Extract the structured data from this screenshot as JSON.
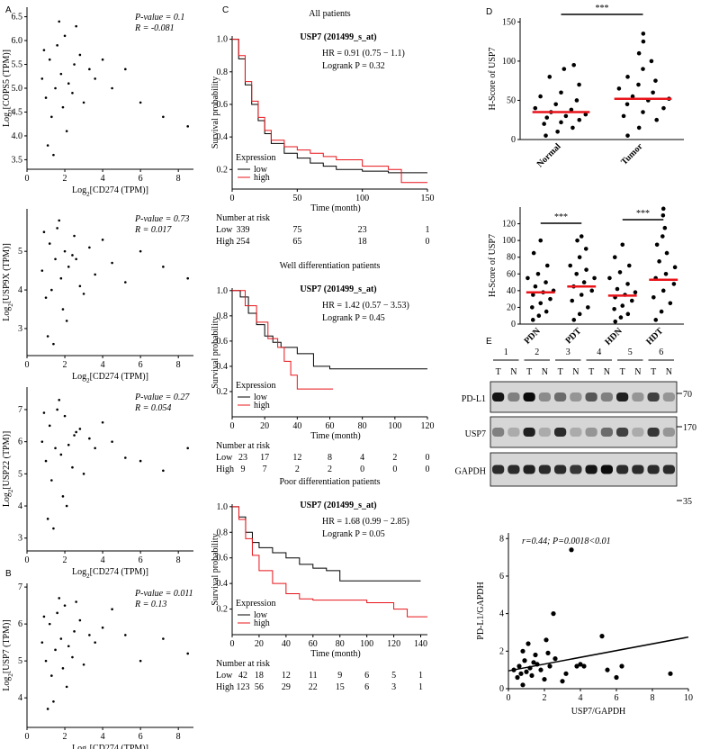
{
  "chart_data": [
    {
      "type": "scatter",
      "panel": "A",
      "xlabel": [
        "Log",
        "2",
        "[CD274 (TPM)]"
      ],
      "ylabel": [
        "Log",
        "2",
        "[COPS5 (TPM)]"
      ],
      "annotations": [
        "P-value = 0.1",
        "R = -0.081"
      ],
      "xlim": [
        0,
        8.8
      ],
      "xticks": [
        0,
        2,
        4,
        6,
        8
      ],
      "ylim": [
        3.3,
        6.7
      ],
      "yticks": [
        3.5,
        {
          "value": 4,
          "label": "4.0"
        },
        4.5,
        {
          "value": 5,
          "label": "5.0"
        },
        5.5,
        {
          "value": 6,
          "label": "6.0"
        },
        6.5
      ],
      "color": "#000000",
      "x": [
        0.8,
        1.0,
        1.2,
        1.3,
        1.5,
        1.6,
        1.8,
        1.9,
        2.0,
        2.2,
        2.4,
        2.5,
        2.8,
        3.0,
        3.3,
        3.6,
        4.0,
        4.5,
        5.2,
        6.0,
        7.2,
        8.5,
        1.1,
        1.7,
        2.1,
        0.9,
        1.4,
        2.6
      ],
      "y": [
        5.2,
        4.8,
        5.6,
        4.4,
        5.0,
        5.9,
        5.3,
        4.6,
        6.1,
        5.1,
        4.9,
        5.5,
        5.7,
        4.7,
        5.4,
        5.2,
        5.6,
        5.0,
        5.4,
        4.7,
        4.4,
        4.2,
        3.8,
        6.4,
        4.1,
        5.8,
        3.6,
        6.3
      ]
    },
    {
      "type": "scatter",
      "xlabel": [
        "Log",
        "2",
        "[CD274 (TPM)]"
      ],
      "ylabel": [
        "Log",
        "2",
        "[USP9X (TPM)]"
      ],
      "annotations": [
        "P-value = 0.73",
        "R = 0.017"
      ],
      "xlim": [
        0,
        8.8
      ],
      "xticks": [
        0,
        2,
        4,
        6,
        8
      ],
      "ylim": [
        2.3,
        6.1
      ],
      "yticks": [
        3,
        4,
        5
      ],
      "color": "#000000",
      "x": [
        0.8,
        1.0,
        1.2,
        1.3,
        1.5,
        1.6,
        1.8,
        1.9,
        2.0,
        2.2,
        2.4,
        2.5,
        2.8,
        3.0,
        3.3,
        3.6,
        4.0,
        4.5,
        5.2,
        6.0,
        7.2,
        8.5,
        1.1,
        1.7,
        2.1,
        0.9,
        1.4,
        2.6
      ],
      "y": [
        4.5,
        3.8,
        5.2,
        4.0,
        4.8,
        5.6,
        4.3,
        3.5,
        5.0,
        4.6,
        4.9,
        5.4,
        4.1,
        3.9,
        5.1,
        4.4,
        5.3,
        4.7,
        4.2,
        5.0,
        4.6,
        4.3,
        2.8,
        5.8,
        3.2,
        5.5,
        2.6,
        4.8
      ]
    },
    {
      "type": "scatter",
      "xlabel": [
        "Log",
        "2",
        "[CD274 (TPM)]"
      ],
      "ylabel": [
        "Log",
        "2",
        "[USP22 (TPM)]"
      ],
      "annotations": [
        "P-value = 0.27",
        "R = 0.054"
      ],
      "xlim": [
        0,
        8.8
      ],
      "xticks": [
        0,
        2,
        4,
        6,
        8
      ],
      "ylim": [
        2.6,
        7.7
      ],
      "yticks": [
        3,
        4,
        5,
        6,
        7
      ],
      "color": "#000000",
      "x": [
        0.8,
        1.0,
        1.2,
        1.3,
        1.5,
        1.6,
        1.8,
        1.9,
        2.0,
        2.2,
        2.4,
        2.5,
        2.8,
        3.0,
        3.3,
        3.6,
        4.0,
        4.5,
        5.2,
        6.0,
        7.2,
        8.5,
        1.1,
        1.7,
        2.1,
        0.9,
        1.4,
        2.6
      ],
      "y": [
        6.0,
        5.4,
        6.5,
        4.8,
        5.8,
        7.0,
        5.6,
        4.3,
        6.8,
        5.9,
        5.2,
        6.2,
        6.4,
        5.0,
        6.1,
        5.8,
        6.6,
        6.0,
        5.5,
        5.4,
        5.1,
        5.8,
        3.6,
        7.3,
        4.0,
        6.9,
        3.3,
        6.3
      ]
    },
    {
      "type": "scatter",
      "panel": "B",
      "xlabel": [
        "Log",
        "2",
        "[CD274 (TPM)]"
      ],
      "ylabel": [
        "Log",
        "2",
        "[USP7 (TPM)]"
      ],
      "annotations": [
        "P-value = 0.011",
        "R = 0.13"
      ],
      "xlim": [
        0,
        8.8
      ],
      "xticks": [
        0,
        2,
        4,
        6,
        8
      ],
      "ylim": [
        3.2,
        7.1
      ],
      "yticks": [
        4,
        5,
        6,
        7
      ],
      "color": "#000000",
      "x": [
        0.8,
        1.0,
        1.2,
        1.3,
        1.5,
        1.6,
        1.8,
        1.9,
        2.0,
        2.2,
        2.4,
        2.5,
        2.8,
        3.0,
        3.3,
        3.6,
        4.0,
        4.5,
        5.2,
        6.0,
        7.2,
        8.5,
        1.1,
        1.7,
        2.1,
        0.9,
        1.4,
        2.6
      ],
      "y": [
        5.5,
        5.0,
        6.0,
        4.6,
        5.3,
        6.3,
        5.6,
        4.8,
        6.5,
        5.4,
        5.1,
        5.8,
        6.1,
        4.9,
        5.7,
        5.5,
        5.9,
        6.4,
        5.7,
        5.0,
        5.6,
        5.2,
        3.7,
        6.7,
        4.3,
        6.2,
        3.9,
        6.6
      ]
    },
    {
      "type": "km",
      "panel": "C",
      "header": "All patients",
      "gene": "USP7 (201499_s_at)",
      "hr": "HR = 0.91 (0.75 − 1.1)",
      "logrank": "Logrank P = 0.32",
      "xlabel": "Time (month)",
      "ylabel": "Survival probability",
      "legend_title": "Expression",
      "xlim": [
        0,
        150
      ],
      "xticks": [
        0,
        50,
        100,
        150
      ],
      "ylim": [
        0.08,
        1.02
      ],
      "yticks": [
        0.2,
        0.4,
        0.6,
        0.8,
        {
          "value": 1,
          "label": "1.0"
        }
      ],
      "series": [
        {
          "name": "low",
          "color": "#000000",
          "x": [
            0,
            5,
            10,
            15,
            20,
            25,
            30,
            40,
            50,
            60,
            70,
            80,
            100,
            120,
            150
          ],
          "values": [
            1,
            0.88,
            0.72,
            0.6,
            0.5,
            0.42,
            0.36,
            0.3,
            0.27,
            0.24,
            0.22,
            0.2,
            0.19,
            0.18,
            0.18
          ]
        },
        {
          "name": "high",
          "color": "#e8141a",
          "x": [
            0,
            5,
            10,
            15,
            20,
            25,
            30,
            40,
            50,
            60,
            70,
            80,
            100,
            120,
            130,
            150
          ],
          "values": [
            1,
            0.9,
            0.74,
            0.62,
            0.52,
            0.44,
            0.38,
            0.34,
            0.32,
            0.3,
            0.28,
            0.26,
            0.22,
            0.2,
            0.12,
            0.12
          ]
        }
      ],
      "risk_title": "Number at risk",
      "risk": [
        {
          "name": "Low",
          "values": [
            339,
            75,
            23,
            1
          ]
        },
        {
          "name": "High",
          "values": [
            254,
            65,
            18,
            0
          ]
        }
      ]
    },
    {
      "type": "km",
      "header": "Well differentiation patients",
      "gene": "USP7 (201499_s_at)",
      "hr": "HR = 1.42 (0.57 − 3.53)",
      "logrank": "Logrank P = 0.45",
      "xlabel": "Time (month)",
      "ylabel": "Survival probability",
      "legend_title": "Expression",
      "xlim": [
        0,
        120
      ],
      "xticks": [
        0,
        20,
        40,
        60,
        80,
        100,
        120
      ],
      "ylim": [
        0,
        1.02
      ],
      "yticks": [
        0.2,
        0.4,
        0.6,
        0.8,
        {
          "value": 1,
          "label": "1.0"
        }
      ],
      "series": [
        {
          "name": "low",
          "color": "#000000",
          "x": [
            0,
            5,
            10,
            15,
            20,
            25,
            30,
            40,
            50,
            60,
            120
          ],
          "values": [
            1,
            0.95,
            0.82,
            0.73,
            0.64,
            0.59,
            0.55,
            0.5,
            0.4,
            0.38,
            0.38
          ]
        },
        {
          "name": "high",
          "color": "#e8141a",
          "x": [
            0,
            8,
            15,
            22,
            28,
            32,
            36,
            40,
            50,
            62
          ],
          "values": [
            1,
            0.88,
            0.75,
            0.62,
            0.55,
            0.44,
            0.33,
            0.22,
            0.22,
            0.22
          ]
        }
      ],
      "risk_title": "Number at risk",
      "risk": [
        {
          "name": "Low",
          "values": [
            23,
            17,
            12,
            8,
            4,
            2,
            0
          ]
        },
        {
          "name": "High",
          "values": [
            9,
            7,
            2,
            2,
            0,
            0,
            0
          ]
        }
      ]
    },
    {
      "type": "km",
      "header": "Poor differentiation patients",
      "gene": "USP7 (201499_s_at)",
      "hr": "HR = 1.68 (0.99 − 2.85)",
      "logrank": "Logrank P = 0.05",
      "xlabel": "Time (month)",
      "ylabel": "Survival probability",
      "legend_title": "Expression",
      "xlim": [
        0,
        145
      ],
      "xticks": [
        0,
        20,
        40,
        60,
        80,
        100,
        120,
        140
      ],
      "ylim": [
        0,
        1.02
      ],
      "yticks": [
        0.2,
        0.4,
        0.6,
        0.8,
        {
          "value": 1,
          "label": "1.0"
        }
      ],
      "series": [
        {
          "name": "low",
          "color": "#000000",
          "x": [
            0,
            5,
            10,
            15,
            20,
            30,
            40,
            50,
            60,
            70,
            80,
            100,
            140
          ],
          "values": [
            1,
            0.92,
            0.8,
            0.72,
            0.68,
            0.64,
            0.6,
            0.55,
            0.52,
            0.5,
            0.42,
            0.42,
            0.42
          ]
        },
        {
          "name": "high",
          "color": "#e8141a",
          "x": [
            0,
            5,
            10,
            15,
            20,
            30,
            40,
            50,
            60,
            80,
            100,
            120,
            130,
            145
          ],
          "values": [
            1,
            0.9,
            0.75,
            0.62,
            0.5,
            0.4,
            0.32,
            0.28,
            0.27,
            0.27,
            0.25,
            0.2,
            0.14,
            0.14
          ]
        }
      ],
      "risk_title": "Number at risk",
      "risk": [
        {
          "name": "Low",
          "values": [
            42,
            18,
            12,
            11,
            9,
            6,
            5,
            1
          ]
        },
        {
          "name": "High",
          "values": [
            123,
            56,
            29,
            22,
            15,
            6,
            3,
            1
          ]
        }
      ]
    },
    {
      "type": "dot",
      "panel": "D",
      "ylabel": "H-Score of USP7",
      "ylim": [
        0,
        155
      ],
      "yticks": [
        0,
        50,
        100,
        150
      ],
      "categories": [
        "Normal",
        "Tumor"
      ],
      "color": "#000000",
      "mean_color": "#e8141a",
      "sig": [
        "***"
      ],
      "groups": [
        [
          5,
          10,
          15,
          20,
          22,
          25,
          28,
          30,
          32,
          35,
          38,
          40,
          45,
          50,
          55,
          60,
          70,
          80,
          90,
          95
        ],
        [
          5,
          15,
          25,
          30,
          35,
          40,
          45,
          50,
          52,
          55,
          60,
          65,
          70,
          75,
          80,
          90,
          100,
          110,
          125,
          135
        ]
      ],
      "means": [
        35,
        52
      ]
    },
    {
      "type": "dot",
      "ylabel": "H-Score of USP7",
      "ylim": [
        0,
        140
      ],
      "yticks": [
        0,
        20,
        40,
        60,
        80,
        100,
        120
      ],
      "categories": [
        "PDN",
        "PDT",
        "HDN",
        "HDT"
      ],
      "color": "#000000",
      "mean_color": "#e8141a",
      "sig": [
        "***",
        "***"
      ],
      "groups": [
        [
          5,
          10,
          15,
          20,
          25,
          30,
          35,
          38,
          40,
          45,
          50,
          55,
          60,
          70,
          85,
          100
        ],
        [
          5,
          12,
          20,
          28,
          35,
          40,
          45,
          50,
          55,
          60,
          65,
          70,
          80,
          90,
          100,
          105
        ],
        [
          3,
          8,
          12,
          18,
          22,
          28,
          32,
          35,
          38,
          42,
          48,
          55,
          62,
          70,
          80,
          95
        ],
        [
          5,
          15,
          25,
          32,
          40,
          48,
          55,
          60,
          68,
          75,
          85,
          95,
          105,
          115,
          130,
          138
        ]
      ],
      "means": [
        38,
        45,
        34,
        53
      ]
    },
    {
      "type": "blot",
      "panel": "E",
      "lanes": [
        "1",
        "2",
        "3",
        "4",
        "5",
        "6"
      ],
      "lane_sub": [
        "T",
        "N",
        "T",
        "N",
        "T",
        "N",
        "T",
        "N",
        "T",
        "N",
        "T",
        "N"
      ],
      "rows": [
        "PD-L1",
        "USP7",
        "GAPDH"
      ],
      "markers": [
        "70",
        "170",
        "35"
      ]
    },
    {
      "type": "scatter",
      "xlabel": "USP7/GAPDH",
      "ylabel": "PD-L1/GAPDH",
      "annotations": [
        "r=0.44; P=0.0018<0.01"
      ],
      "xlim": [
        0,
        10
      ],
      "xticks": [
        0,
        2,
        4,
        6,
        8,
        10
      ],
      "ylim": [
        0,
        8.3
      ],
      "yticks": [
        0,
        2,
        4,
        6,
        8
      ],
      "color": "#000000",
      "x": [
        0.3,
        0.5,
        0.6,
        0.7,
        0.8,
        0.9,
        1.0,
        1.1,
        1.2,
        1.3,
        1.5,
        1.6,
        1.8,
        2.0,
        2.1,
        2.3,
        2.5,
        2.6,
        3.0,
        3.2,
        3.5,
        3.8,
        4.0,
        4.2,
        5.2,
        5.5,
        6.0,
        6.3,
        9.0,
        0.8,
        1.4,
        2.2
      ],
      "y": [
        1.0,
        0.6,
        1.2,
        0.8,
        2.0,
        1.5,
        0.9,
        2.4,
        1.1,
        0.7,
        1.8,
        1.3,
        1.0,
        0.5,
        2.6,
        1.2,
        4.0,
        1.6,
        0.4,
        0.8,
        7.4,
        1.2,
        1.3,
        1.2,
        2.8,
        1.0,
        0.6,
        1.2,
        0.8,
        0.2,
        1.4,
        1.9
      ],
      "fit": {
        "x": [
          0,
          10
        ],
        "y": [
          0.95,
          2.75
        ]
      }
    }
  ]
}
